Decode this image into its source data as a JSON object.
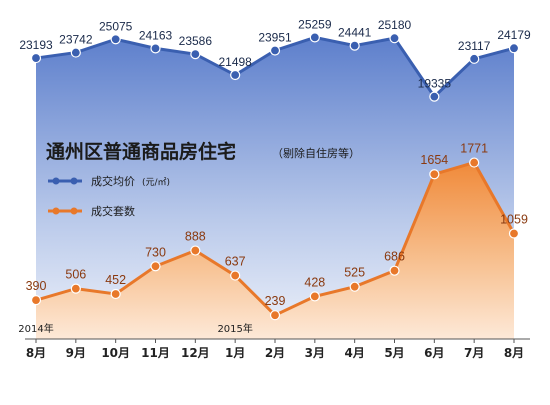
{
  "chart_data": {
    "type": "line",
    "title": "通州区普通商品房住宅",
    "subtitle": "（剔除自住房等）",
    "categories": [
      "8月",
      "9月",
      "10月",
      "11月",
      "12月",
      "1月",
      "2月",
      "3月",
      "4月",
      "5月",
      "6月",
      "7月",
      "8月"
    ],
    "year_labels": [
      {
        "index": 0,
        "text": "2014年"
      },
      {
        "index": 5,
        "text": "2015年"
      }
    ],
    "series": [
      {
        "name": "成交均价",
        "unit": "(元/㎡)",
        "color": "#3a5fb0",
        "values": [
          23193,
          23742,
          25075,
          24163,
          23586,
          21498,
          23951,
          25259,
          24441,
          25180,
          19335,
          23117,
          24179
        ],
        "ylim": [
          15000,
          26000
        ]
      },
      {
        "name": "成交套数",
        "color": "#e8782a",
        "values": [
          390,
          506,
          452,
          730,
          888,
          637,
          239,
          428,
          525,
          686,
          1654,
          1771,
          1059
        ],
        "ylim": [
          0,
          2600
        ]
      }
    ]
  }
}
